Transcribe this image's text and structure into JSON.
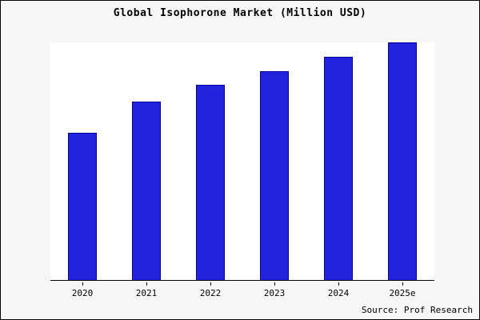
{
  "title": "Global Isophorone Market (Million USD)",
  "source_label": "Source: Prof Research",
  "colors": {
    "bar_fill": "#2323dd",
    "bar_border": "#000099",
    "plot_bg": "#ffffff",
    "frame_bg": "#f7f7f7"
  },
  "chart_data": {
    "type": "bar",
    "title": "Global Isophorone Market (Million USD)",
    "categories": [
      "2020",
      "2021",
      "2022",
      "2023",
      "2024",
      "2025e"
    ],
    "values": [
      62,
      75,
      82,
      88,
      94,
      100
    ],
    "xlabel": "",
    "ylabel": "",
    "ylim": [
      0,
      100
    ],
    "grid": false,
    "legend": false,
    "annotations": [
      "Source: Prof Research"
    ]
  }
}
